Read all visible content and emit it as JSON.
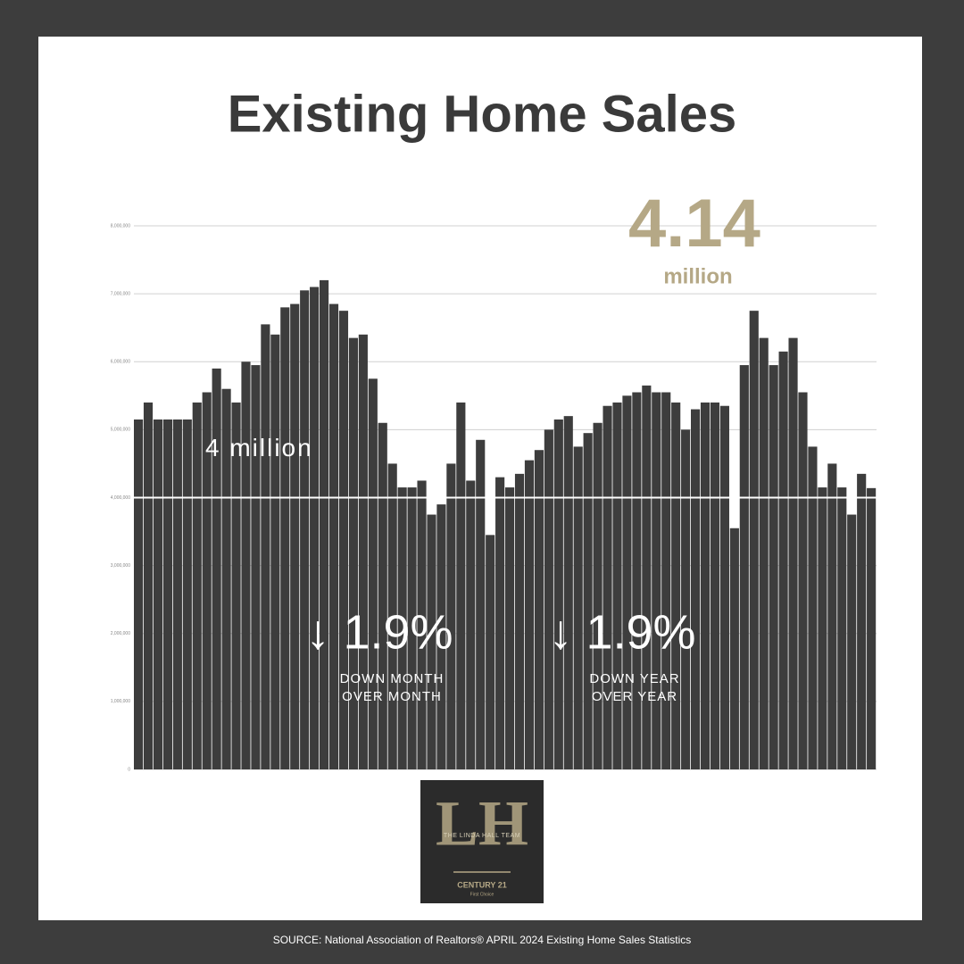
{
  "header": {
    "title": "Existing Home Sales"
  },
  "chart_data": {
    "type": "bar",
    "color": "#3d3d3d",
    "values": [
      5150000,
      5400000,
      5150000,
      5150000,
      5150000,
      5150000,
      5400000,
      5550000,
      5900000,
      5600000,
      5400000,
      6000000,
      5950000,
      6550000,
      6400000,
      6800000,
      6850000,
      7050000,
      7100000,
      7200000,
      6850000,
      6750000,
      6350000,
      6400000,
      5750000,
      5100000,
      4500000,
      4150000,
      4150000,
      4250000,
      3750000,
      3900000,
      4500000,
      5400000,
      4250000,
      4850000,
      3450000,
      4300000,
      4150000,
      4350000,
      4550000,
      4700000,
      5000000,
      5150000,
      5200000,
      4750000,
      4950000,
      5100000,
      5350000,
      5400000,
      5500000,
      5550000,
      5650000,
      5550000,
      5550000,
      5400000,
      5000000,
      5300000,
      5400000,
      5400000,
      5350000,
      3550000,
      5950000,
      6750000,
      6350000,
      5950000,
      6150000,
      6350000,
      5550000,
      4750000,
      4150000,
      4500000,
      4150000,
      3750000,
      4350000,
      4140000
    ],
    "ylim": [
      0,
      8000000
    ],
    "yticks": [
      0,
      {
        "value": 1000000,
        "label": "1,000,000"
      },
      {
        "value": 2000000,
        "label": "2,000,000"
      },
      {
        "value": 3000000,
        "label": "3,000,000"
      },
      {
        "value": 4000000,
        "label": "4,000,000"
      },
      {
        "value": 5000000,
        "label": "5,000,000"
      },
      {
        "value": 6000000,
        "label": "6,000,000"
      },
      {
        "value": 7000000,
        "label": "7,000,000"
      },
      {
        "value": 8000000,
        "label": "8,000,000"
      }
    ],
    "grid": true,
    "reference_line": {
      "value": 4000000,
      "label": "4 million",
      "color": "#ffffff"
    },
    "headline": {
      "value": 4.14,
      "unit": "million",
      "color": "#b5a886"
    },
    "annotations": [
      {
        "text": "↓ 1.9%",
        "lines": [
          "DOWN MONTH",
          "OVER MONTH"
        ]
      },
      {
        "text": "↓ 1.9%",
        "lines": [
          "DOWN YEAR",
          "OVER YEAR"
        ]
      }
    ]
  },
  "logo": {
    "team": "THE LINDA HALL TEAM",
    "monogram": "LH",
    "brand": "CENTURY 21",
    "office": "First Choice"
  },
  "footer": {
    "source": "SOURCE: National Association of Realtors® APRIL 2024 Existing Home Sales Statistics"
  }
}
